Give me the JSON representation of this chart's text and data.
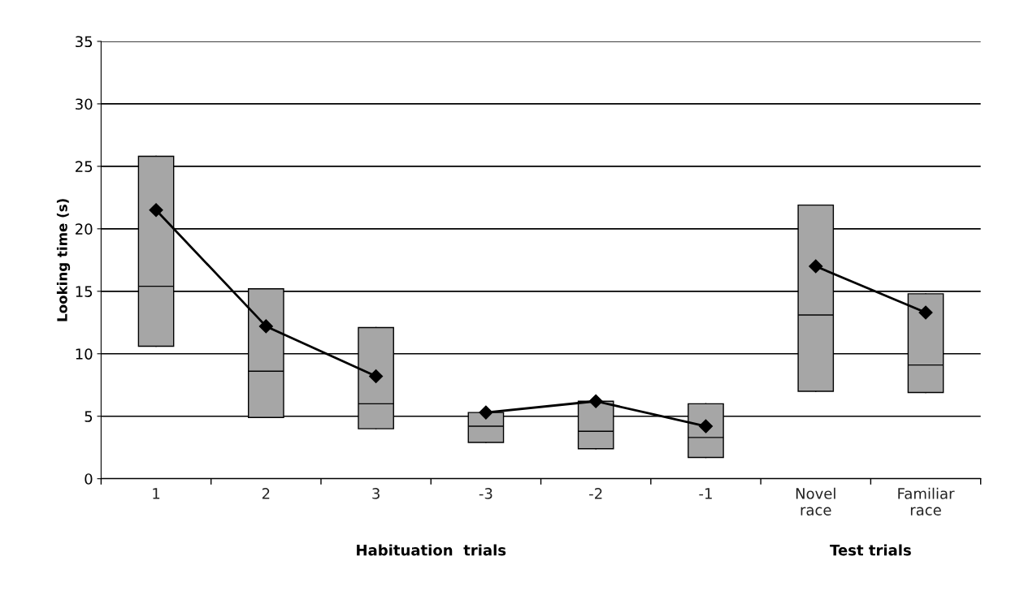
{
  "chart_data": {
    "type": "box",
    "ylabel": "Looking time (s)",
    "xlabel": "Habituation  trials",
    "annotations": [
      "Test trials"
    ],
    "categories": [
      "1",
      "2",
      "3",
      "-3",
      "-2",
      "-1",
      "Novel\nrace",
      "Familiar\nrace"
    ],
    "boxes": [
      {
        "low": 10.6,
        "q1": 10.6,
        "median": 15.4,
        "q3": 25.8,
        "high": 25.8
      },
      {
        "low": 4.9,
        "q1": 4.9,
        "median": 8.6,
        "q3": 15.2,
        "high": 15.2
      },
      {
        "low": 4.0,
        "q1": 4.0,
        "median": 6.0,
        "q3": 12.1,
        "high": 12.1
      },
      {
        "low": 2.9,
        "q1": 2.9,
        "median": 4.2,
        "q3": 5.3,
        "high": 5.3
      },
      {
        "low": 2.4,
        "q1": 2.4,
        "median": 3.8,
        "q3": 6.2,
        "high": 6.2
      },
      {
        "low": 1.7,
        "q1": 1.7,
        "median": 3.3,
        "q3": 6.0,
        "high": 6.0
      },
      {
        "low": 7.0,
        "q1": 7.0,
        "median": 13.1,
        "q3": 21.9,
        "high": 21.9
      },
      {
        "low": 6.9,
        "q1": 6.9,
        "median": 9.1,
        "q3": 14.8,
        "high": 14.8
      }
    ],
    "colors": [
      "#a6a6a6",
      "#a6a6a6",
      "#a6a6a6",
      "#a6a6a6",
      "#a6a6a6",
      "#a6a6a6",
      "#a6a6a6",
      "#a6a6a6"
    ],
    "series": [
      {
        "type": "line",
        "color": "#000000",
        "values": [
          21.5,
          12.2,
          8.2,
          null,
          null,
          null,
          null,
          null
        ]
      },
      {
        "type": "line",
        "color": "#000000",
        "values": [
          null,
          null,
          null,
          5.3,
          6.2,
          4.2,
          null,
          null
        ]
      },
      {
        "type": "line",
        "color": "#000000",
        "values": [
          null,
          null,
          null,
          null,
          null,
          null,
          17.0,
          13.3
        ]
      }
    ],
    "marker": "diamond",
    "line_style": "solid",
    "ylim": [
      0,
      35
    ],
    "yticks": [
      0,
      5,
      10,
      15,
      20,
      25,
      30,
      35
    ],
    "grid": "y"
  }
}
